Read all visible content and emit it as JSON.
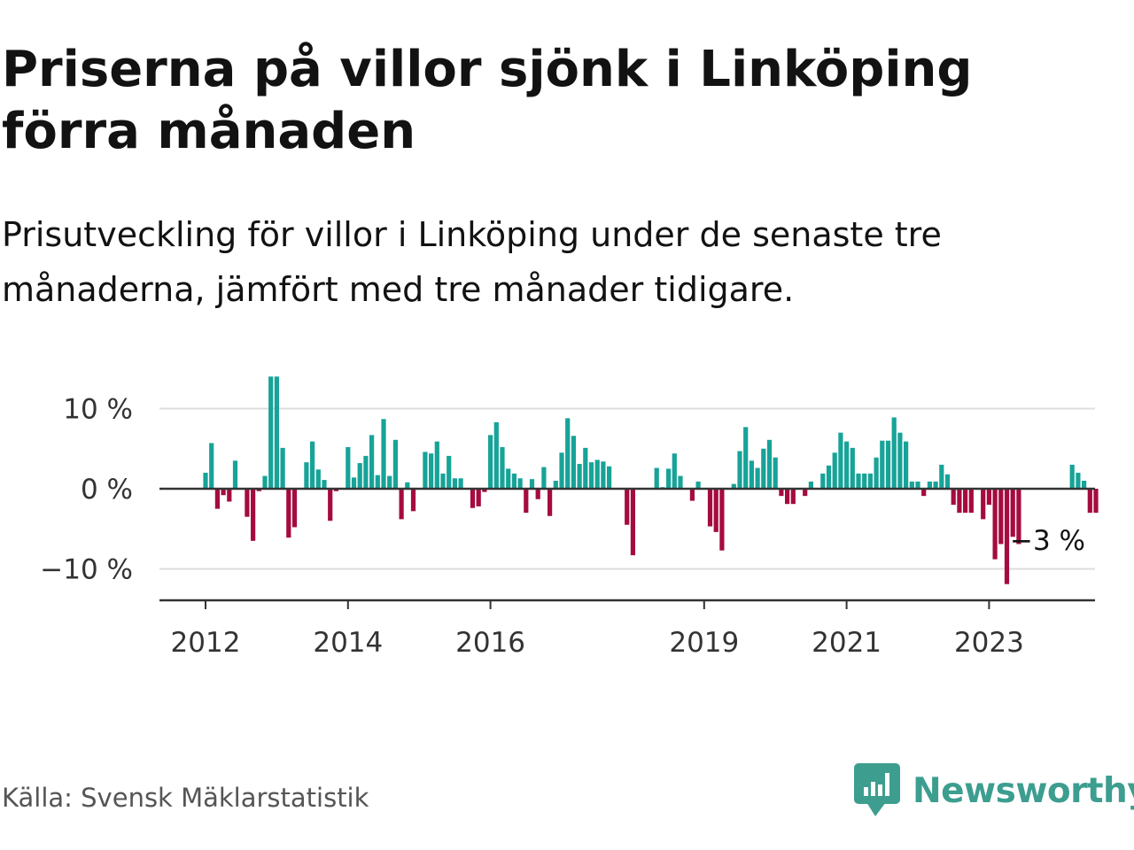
{
  "title": "Priserna på villor sjönk i Linköping förra månaden",
  "subtitle": "Prisutveckling för villor i Linköping under de senaste tre månaderna, jämfört med tre månader tidigare.",
  "source": "Källa: Svensk Mäklarstatistik",
  "brand": {
    "name": "Newsworthy",
    "icon": "newsworthy-bar-chart-icon",
    "color": "#3d9e8f"
  },
  "colors": {
    "positive": "#17a398",
    "negative": "#a50b3e",
    "axis": "#333333",
    "grid": "#dddddd"
  },
  "chart_data": {
    "type": "bar",
    "x_start": "2012-01",
    "x_step": "month",
    "ylim": [
      -14,
      14
    ],
    "yticks": [
      {
        "value": 10,
        "label": "10 %"
      },
      {
        "value": 0,
        "label": "0 %"
      },
      {
        "value": -10,
        "label": "−10 %"
      }
    ],
    "xticks": [
      {
        "date": "2012-01",
        "label": "2012"
      },
      {
        "date": "2014-01",
        "label": "2014"
      },
      {
        "date": "2016-01",
        "label": "2016"
      },
      {
        "date": "2019-01",
        "label": "2019"
      },
      {
        "date": "2021-01",
        "label": "2021"
      },
      {
        "date": "2023-01",
        "label": "2023"
      }
    ],
    "annotation": {
      "label": "−3 %",
      "value": -3
    },
    "grid": true,
    "values": [
      2,
      5.7,
      -2.5,
      -0.8,
      -1.6,
      3.5,
      0,
      -3.5,
      -6.5,
      -0.3,
      1.6,
      14,
      14,
      5.1,
      -6.1,
      -4.8,
      0,
      3.3,
      5.9,
      2.4,
      1.1,
      -4,
      -0.3,
      0,
      5.2,
      1.4,
      3.2,
      4.1,
      6.7,
      1.7,
      8.7,
      1.6,
      6.1,
      -3.8,
      0.8,
      -2.8,
      0,
      4.6,
      4.4,
      5.9,
      1.9,
      4.1,
      1.3,
      1.3,
      0,
      -2.4,
      -2.2,
      -0.4,
      6.7,
      8.3,
      5.2,
      2.5,
      1.9,
      1.3,
      -3,
      1.2,
      -1.3,
      2.7,
      -3.4,
      1,
      4.5,
      8.8,
      6.6,
      3.1,
      5.1,
      3.3,
      3.6,
      3.4,
      2.8,
      0,
      0,
      -4.5,
      -8.3,
      0,
      0,
      0,
      2.6,
      0.2,
      2.5,
      4.4,
      1.6,
      0,
      -1.5,
      0.9,
      0,
      -4.7,
      -5.4,
      -7.7,
      0,
      0.6,
      4.7,
      7.7,
      3.5,
      2.6,
      5,
      6.1,
      3.9,
      -0.9,
      -1.9,
      -1.9,
      0,
      -0.9,
      0.9,
      0,
      1.9,
      2.9,
      4.5,
      7,
      5.9,
      5.1,
      1.9,
      1.9,
      1.9,
      3.9,
      6,
      6,
      8.9,
      7,
      5.9,
      0.9,
      0.9,
      -0.9,
      0.9,
      0.9,
      3,
      1.8,
      -2,
      -3,
      -3,
      -3,
      0,
      -3.8,
      -2,
      -8.8,
      -6.9,
      -11.9,
      -6,
      -6.9,
      0,
      0,
      0,
      0,
      0,
      0,
      0,
      0,
      3,
      2,
      1,
      -3,
      -3
    ]
  }
}
